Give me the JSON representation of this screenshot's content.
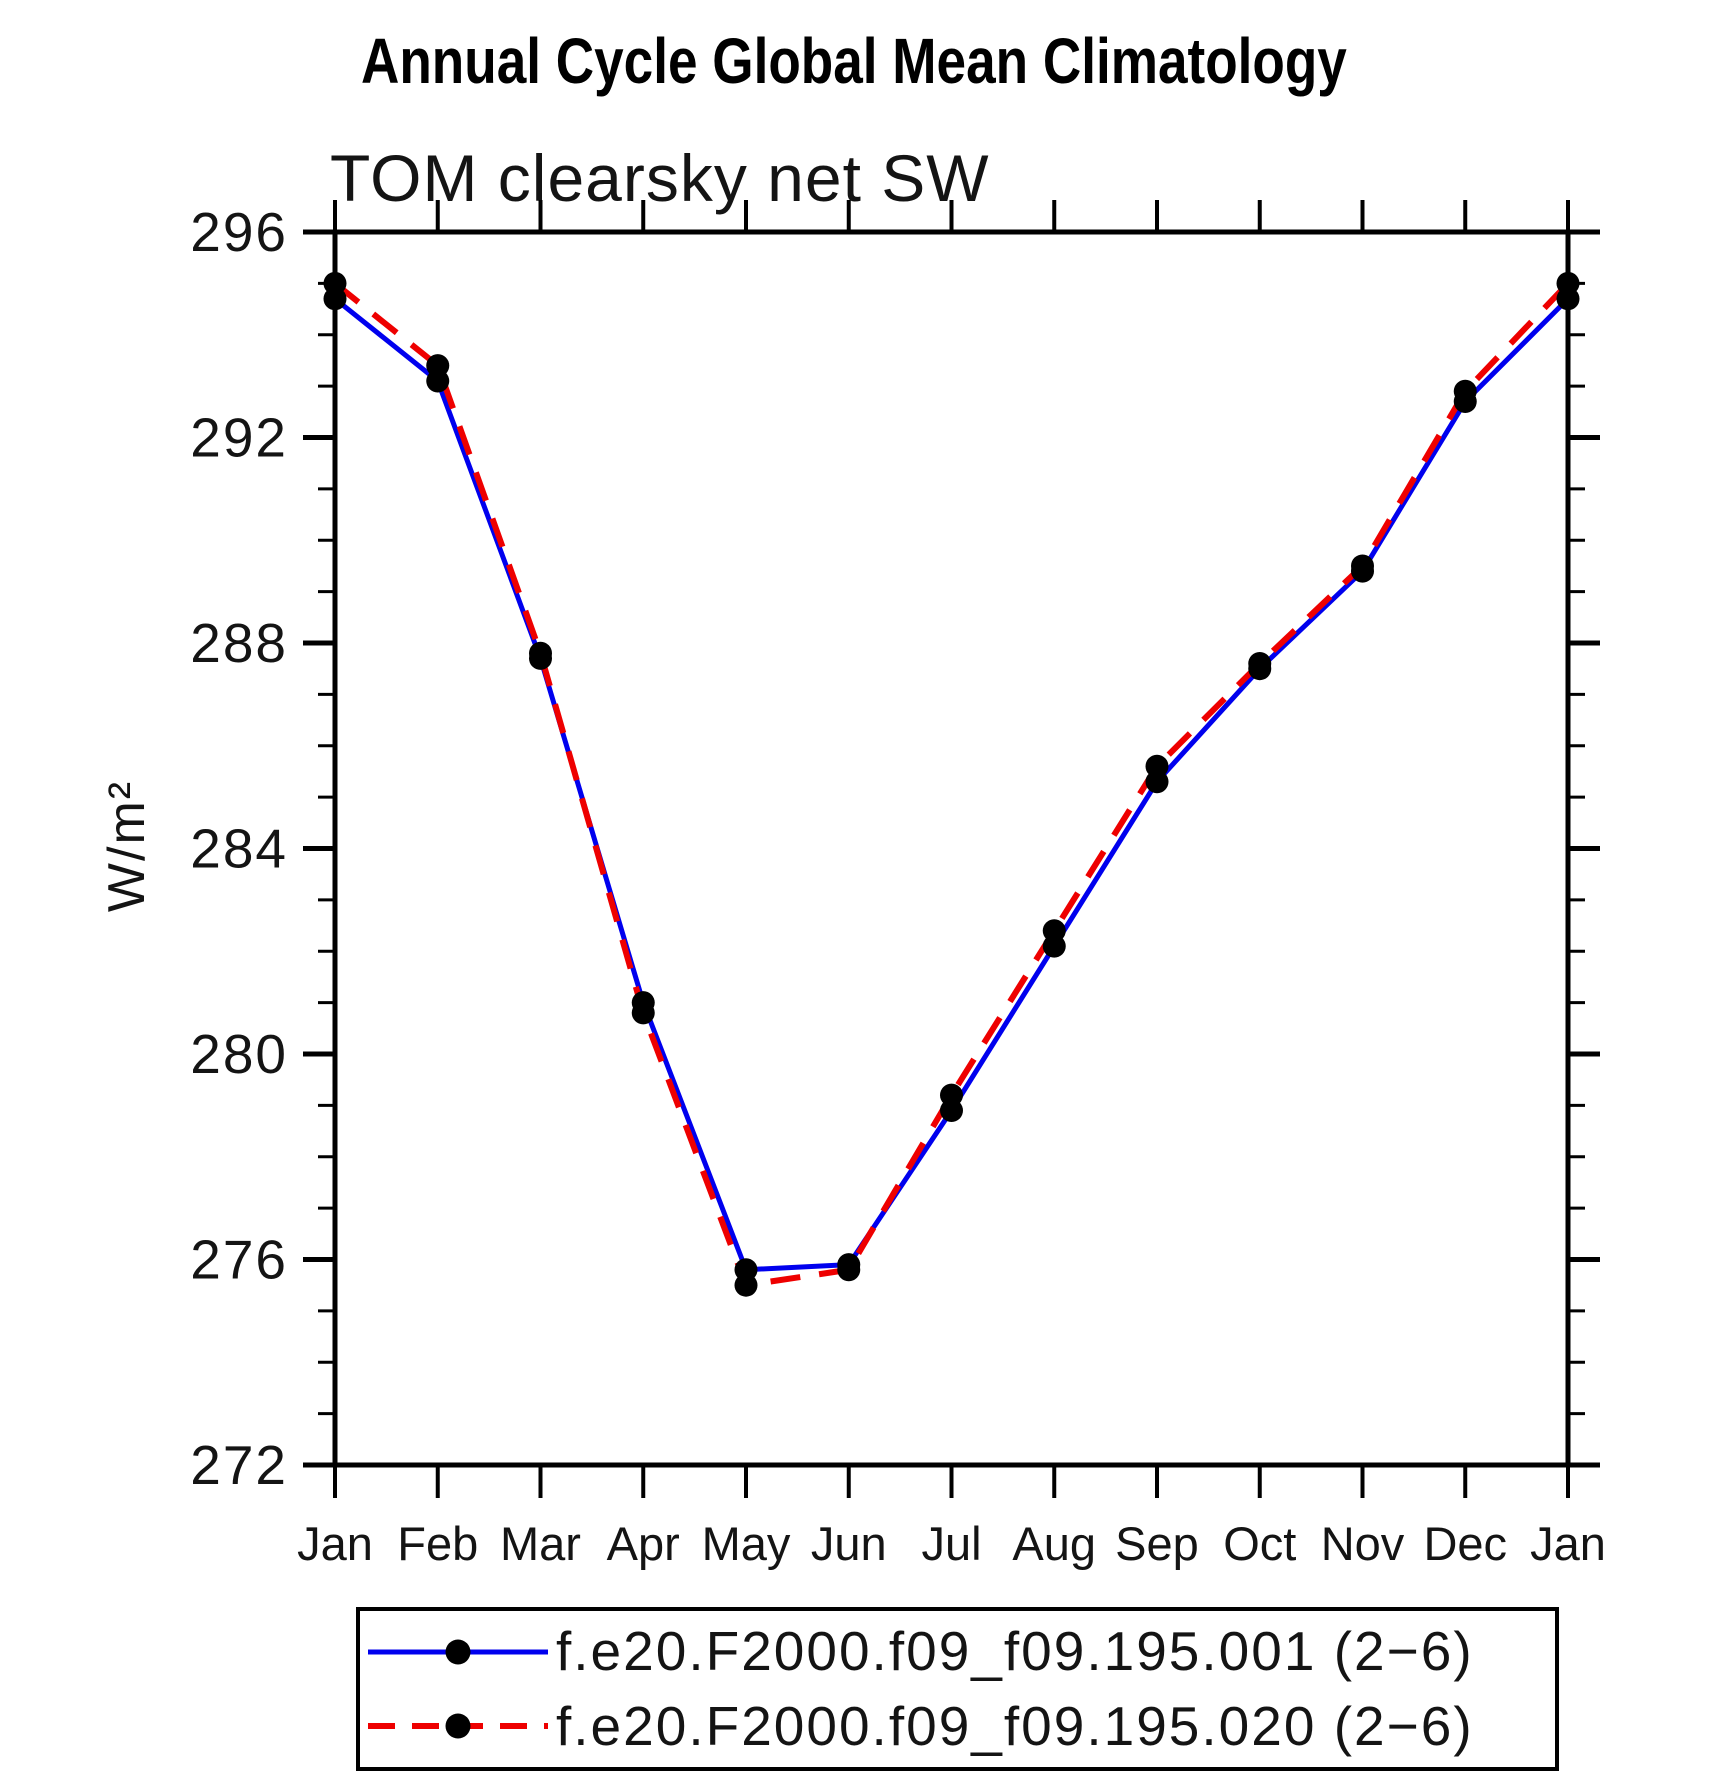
{
  "chart_data": {
    "type": "line",
    "title": "Annual Cycle Global Mean Climatology",
    "subtitle": "TOM clearsky net SW",
    "ylabel": "W/m²",
    "xlabel": "",
    "x_categories": [
      "Jan",
      "Feb",
      "Mar",
      "Apr",
      "May",
      "Jun",
      "Jul",
      "Aug",
      "Sep",
      "Oct",
      "Nov",
      "Dec",
      "Jan"
    ],
    "ylim": [
      272,
      296
    ],
    "ytick_major": [
      272,
      276,
      280,
      284,
      288,
      292,
      296
    ],
    "ytick_minor_step": 1,
    "grid": "off",
    "legend_position": "bottom",
    "marker_color": "#000000",
    "axis_color": "#000000",
    "series": [
      {
        "label": "f.e20.F2000.f09_f09.195.001 (2−6)",
        "color": "#0000ee",
        "style": "solid",
        "marker": "circle",
        "values": [
          294.7,
          293.1,
          287.7,
          281.0,
          275.8,
          275.9,
          278.9,
          282.1,
          285.3,
          287.5,
          289.4,
          292.7,
          294.7
        ]
      },
      {
        "label": "f.e20.F2000.f09_f09.195.020 (2−6)",
        "color": "#ee0000",
        "style": "dashed",
        "marker": "circle",
        "values": [
          295.0,
          293.4,
          287.8,
          280.8,
          275.5,
          275.8,
          279.2,
          282.4,
          285.6,
          287.6,
          289.5,
          292.9,
          295.0
        ]
      }
    ]
  }
}
